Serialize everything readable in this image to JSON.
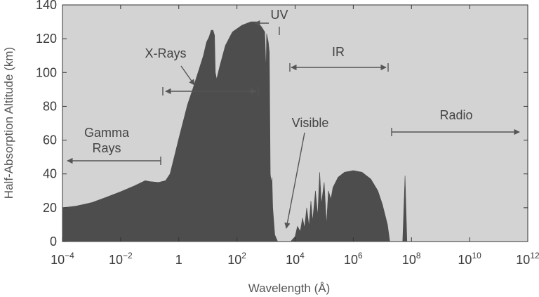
{
  "chart_data": {
    "type": "area",
    "title": "",
    "xlabel": "Wavelength (Å)",
    "ylabel": "Half-Absorption Altitude (km)",
    "x_scale": "log10",
    "xlim": [
      0.0001,
      1000000000000
    ],
    "ylim": [
      0,
      140
    ],
    "grid": false,
    "colors": {
      "plot_bg": "#d3d3d3",
      "fill": "#4d4d4d",
      "annotation": "#555555",
      "text": "#3a3a3a"
    },
    "x_ticks": [
      {
        "base": "10",
        "exp": "−4"
      },
      {
        "base": "10",
        "exp": "−2"
      },
      {
        "base": "1",
        "exp": ""
      },
      {
        "base": "10",
        "exp": "2"
      },
      {
        "base": "10",
        "exp": "4"
      },
      {
        "base": "10",
        "exp": "6"
      },
      {
        "base": "10",
        "exp": "8"
      },
      {
        "base": "10",
        "exp": "10"
      },
      {
        "base": "10",
        "exp": "12"
      }
    ],
    "y_ticks": [
      "0",
      "20",
      "40",
      "60",
      "80",
      "100",
      "120",
      "140"
    ],
    "series": [
      {
        "values": [
          [
            0.0001,
            20
          ],
          [
            0.0003,
            21
          ],
          [
            0.001,
            23
          ],
          [
            0.003,
            26
          ],
          [
            0.01,
            29.5
          ],
          [
            0.03,
            33
          ],
          [
            0.07,
            36
          ],
          [
            0.1,
            35.5
          ],
          [
            0.2,
            35
          ],
          [
            0.35,
            36
          ],
          [
            0.5,
            40
          ],
          [
            0.7,
            50
          ],
          [
            1,
            61
          ],
          [
            2,
            81
          ],
          [
            3,
            90
          ],
          [
            5,
            102
          ],
          [
            7,
            110
          ],
          [
            9,
            118
          ],
          [
            11,
            121
          ],
          [
            13,
            125
          ],
          [
            15,
            125
          ],
          [
            17,
            122
          ],
          [
            18,
            100
          ],
          [
            20,
            96
          ],
          [
            25,
            103
          ],
          [
            40,
            116
          ],
          [
            70,
            124
          ],
          [
            150,
            128
          ],
          [
            300,
            130
          ],
          [
            500,
            130
          ],
          [
            700,
            127
          ],
          [
            900,
            124
          ],
          [
            1000,
            100
          ],
          [
            1050,
            123
          ],
          [
            1200,
            118
          ],
          [
            1300,
            112
          ],
          [
            1400,
            40
          ],
          [
            1500,
            35
          ],
          [
            1600,
            38
          ],
          [
            1700,
            20
          ],
          [
            2000,
            4
          ],
          [
            2500,
            0
          ]
        ]
      },
      {
        "values": [
          [
            7000,
            0
          ],
          [
            10000,
            3
          ],
          [
            12000,
            9
          ],
          [
            15000,
            6
          ],
          [
            18000,
            14
          ],
          [
            21000,
            8
          ],
          [
            25000,
            20
          ],
          [
            30000,
            9
          ],
          [
            35000,
            24
          ],
          [
            40000,
            12
          ],
          [
            50000,
            30
          ],
          [
            60000,
            15
          ],
          [
            70000,
            41
          ],
          [
            80000,
            22
          ],
          [
            100000,
            35
          ],
          [
            120000,
            10
          ],
          [
            140000,
            30
          ],
          [
            170000,
            25
          ],
          [
            200000,
            32
          ],
          [
            300000,
            38
          ],
          [
            500000,
            41
          ],
          [
            1000000,
            42
          ],
          [
            2000000,
            41
          ],
          [
            4000000,
            37
          ],
          [
            7000000,
            30
          ],
          [
            10000000,
            22
          ],
          [
            15000000,
            10
          ],
          [
            18000000,
            0
          ]
        ]
      },
      {
        "values": [
          [
            50000000,
            0
          ],
          [
            60000000,
            39
          ],
          [
            70000000,
            0
          ]
        ]
      }
    ],
    "annotations": [
      {
        "label": "Gamma",
        "label2": "Rays",
        "range": [
          0.0001,
          0.3
        ]
      },
      {
        "label": "X-Rays",
        "range": [
          0.3,
          300
        ]
      },
      {
        "label": "UV",
        "range": [
          300,
          3000
        ]
      },
      {
        "label": "Visible",
        "range": [
          4000,
          4000
        ]
      },
      {
        "label": "IR",
        "range": [
          6000,
          8000000
        ]
      },
      {
        "label": "Radio",
        "range": [
          10000000,
          1000000000000
        ]
      }
    ]
  }
}
